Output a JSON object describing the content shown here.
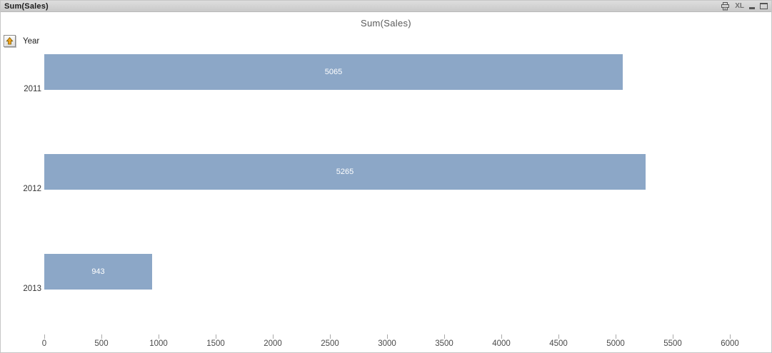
{
  "window": {
    "title": "Sum(Sales)",
    "toolbar": {
      "print_icon": "printer",
      "excel_export_label": "XL",
      "minimize_icon": "minimize",
      "maximize_icon": "maximize"
    }
  },
  "dimension_selector": {
    "label": "Year",
    "icon": "up-arrow"
  },
  "chart_data": {
    "type": "bar",
    "orientation": "horizontal",
    "title": "Sum(Sales)",
    "categories": [
      "2011",
      "2012",
      "2013"
    ],
    "values": [
      5065,
      5265,
      943
    ],
    "value_labels": [
      "5065",
      "5265",
      "943"
    ],
    "xlabel": "",
    "ylabel": "",
    "xlim": [
      0,
      6000
    ],
    "x_ticks": [
      0,
      500,
      1000,
      1500,
      2000,
      2500,
      3000,
      3500,
      4000,
      4500,
      5000,
      5500,
      6000
    ],
    "grid": false,
    "legend": false,
    "bar_color": "#8ca7c7",
    "value_label_color": "#ffffff"
  },
  "colors": {
    "caption_text": "#1b1b1b",
    "chart_title": "#595959",
    "axis_text": "#4a4a4a",
    "tick": "#a8a8a8",
    "category_text": "#333333",
    "arrow_fill": "#f0a21c",
    "arrow_stroke": "#7a5a00",
    "icon_gray": "#555555"
  }
}
